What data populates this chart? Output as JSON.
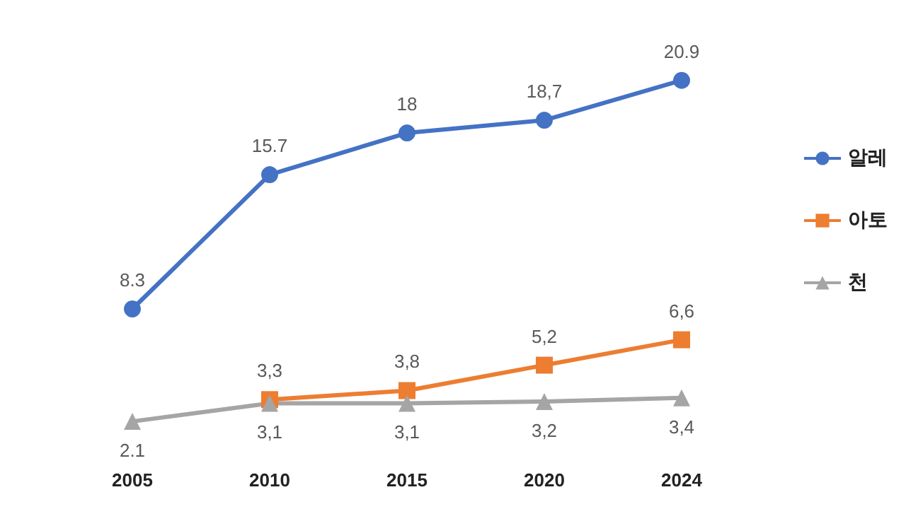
{
  "chart_data": {
    "type": "line",
    "categories": [
      "2005",
      "2010",
      "2015",
      "2020",
      "2024"
    ],
    "series": [
      {
        "name": "알레",
        "color": "#4472c4",
        "values": [
          8.3,
          15.7,
          18,
          18.7,
          20.9
        ],
        "value_labels": [
          "8.3",
          "15.7",
          "18",
          "18,7",
          "20.9"
        ],
        "marker": "circle"
      },
      {
        "name": "아토",
        "color": "#ed7d31",
        "values": [
          null,
          3.3,
          3.8,
          5.2,
          6.6
        ],
        "value_labels": [
          null,
          "3,3",
          "3,8",
          "5,2",
          "6,6"
        ],
        "marker": "square"
      },
      {
        "name": "천",
        "color": "#a5a5a5",
        "values": [
          2.1,
          3.1,
          3.1,
          3.2,
          3.4
        ],
        "value_labels": [
          "2.1",
          "3,1",
          "3,1",
          "3,2",
          "3,4"
        ],
        "marker": "triangle"
      }
    ],
    "grid": false,
    "legend": "right"
  }
}
